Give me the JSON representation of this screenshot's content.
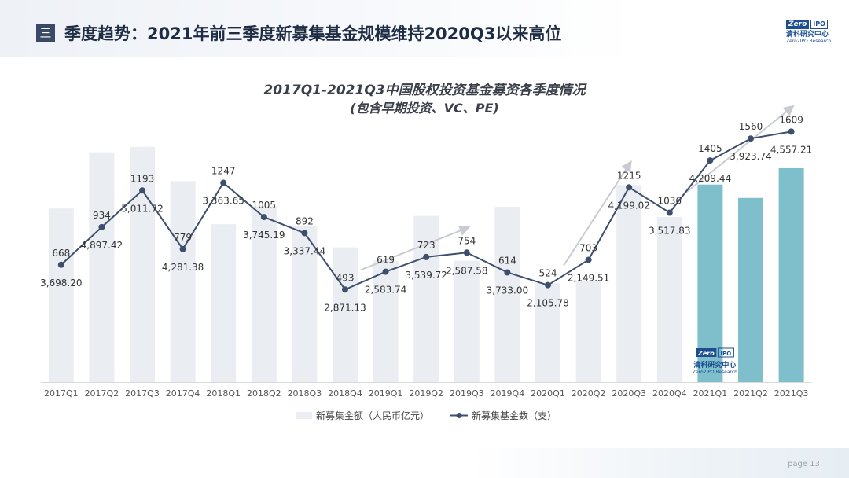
{
  "header": {
    "icon": "menu-icon",
    "badge_glyph": "三",
    "title": "季度趋势：2021年前三季度新募集基金规模维持2020Q3以来高位"
  },
  "logo": {
    "mark_left": "Zero",
    "mark_right": "IPO",
    "name_cn": "清科研究中心",
    "name_en": "Zero2IPO Research"
  },
  "footer": {
    "page_label": "page",
    "page_number": "13"
  },
  "colors": {
    "bar": "#eaedf1",
    "bar_highlight": "#7fbfcb",
    "line": "#3d4f6c",
    "trend_arrow": "#c8ccd2",
    "text": "#333333"
  },
  "chart_data": {
    "type": "bar",
    "title": "2017Q1-2021Q3中国股权投资基金募资各季度情况",
    "subtitle": "(包含早期投资、VC、PE)",
    "categories": [
      "2017Q1",
      "2017Q2",
      "2017Q3",
      "2017Q4",
      "2018Q1",
      "2018Q2",
      "2018Q3",
      "2018Q4",
      "2019Q1",
      "2019Q2",
      "2019Q3",
      "2019Q4",
      "2020Q1",
      "2020Q2",
      "2020Q3",
      "2020Q4",
      "2021Q1",
      "2021Q2",
      "2021Q3"
    ],
    "series": [
      {
        "name": "新募集金额（人民币亿元）",
        "type": "bar",
        "values": [
          3698.2,
          4897.42,
          5011.72,
          4281.38,
          3363.65,
          3745.19,
          3337.44,
          2871.13,
          2583.74,
          3539.72,
          2587.58,
          3733.0,
          2105.78,
          2149.51,
          4199.02,
          3517.83,
          4209.44,
          3923.74,
          4557.21
        ],
        "labels": [
          "3,698.20",
          "4,897.42",
          "5,011.72",
          "4,281.38",
          "3,363.65",
          "3,745.19",
          "3,337.44",
          "2,871.13",
          "2,583.74",
          "3,539.72",
          "2,587.58",
          "3,733.00",
          "2,105.78",
          "2,149.51",
          "4,199.02",
          "3,517.83",
          "4,209.44",
          "3,923.74",
          "4,557.21"
        ],
        "highlight_categories": [
          "2021Q1",
          "2021Q2",
          "2021Q3"
        ]
      },
      {
        "name": "新募集基金数（支）",
        "type": "line",
        "values": [
          668,
          934,
          1193,
          779,
          1247,
          1005,
          892,
          493,
          619,
          723,
          754,
          614,
          524,
          703,
          1215,
          1036,
          1405,
          1560,
          1609
        ],
        "labels": [
          "668",
          "934",
          "1193",
          "779",
          "1247",
          "1005",
          "892",
          "493",
          "619",
          "723",
          "754",
          "614",
          "524",
          "703",
          "1215",
          "1036",
          "1405",
          "1560",
          "1609"
        ]
      }
    ],
    "grid": false,
    "legend": "bottom",
    "trend_arrows": [
      {
        "from": "2018Q4",
        "to": "2019Q3"
      },
      {
        "from": "2020Q1",
        "to": "2020Q3"
      },
      {
        "from": "2020Q4",
        "to": "2021Q3"
      }
    ],
    "watermark": {
      "mark_left": "Zero",
      "mark_right": "IPO",
      "name_cn": "清科研究中心",
      "name_en": "Zero2IPO Research"
    }
  }
}
